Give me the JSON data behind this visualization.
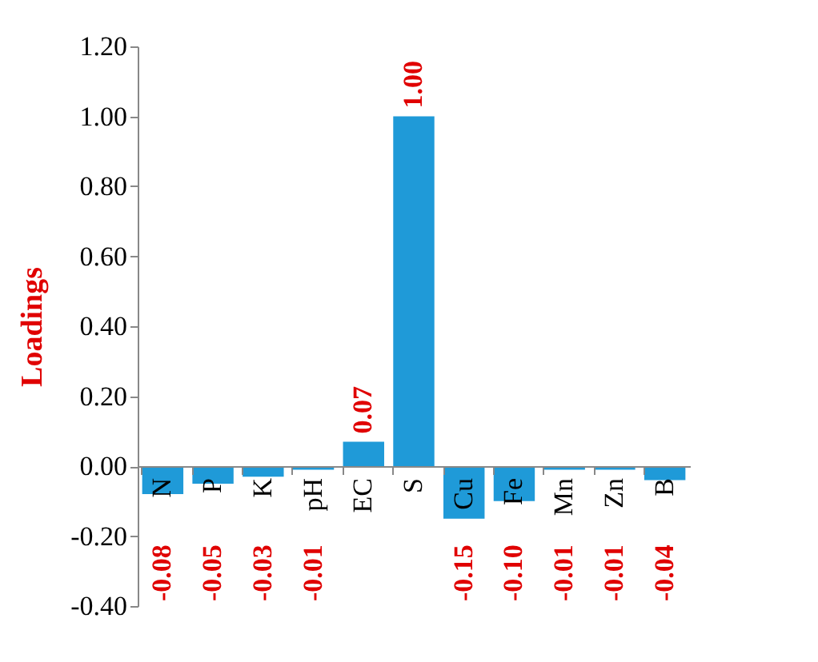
{
  "chart_data": {
    "type": "bar",
    "ylabel": "Loadings",
    "categories": [
      "N",
      "P",
      "K",
      "pH",
      "EC",
      "S",
      "Cu",
      "Fe",
      "Mn",
      "Zn",
      "B"
    ],
    "values": [
      -0.08,
      -0.05,
      -0.03,
      -0.01,
      0.07,
      1.0,
      -0.15,
      -0.1,
      -0.01,
      -0.01,
      -0.04
    ],
    "value_labels": [
      "-0.08",
      "-0.05",
      "-0.03",
      "-0.01",
      "0.07",
      "1.00",
      "-0.15",
      "-0.10",
      "-0.01",
      "-0.01",
      "-0.04"
    ],
    "color": "#1f9ad8",
    "ylim": [
      -0.4,
      1.2
    ],
    "yticks": [
      {
        "value": -0.4,
        "label": "-0.40"
      },
      {
        "value": -0.2,
        "label": "-0.20"
      },
      {
        "value": 0,
        "label": "0.00"
      },
      {
        "value": 0.2,
        "label": "0.20"
      },
      {
        "value": 0.4,
        "label": "0.40"
      },
      {
        "value": 0.6,
        "label": "0.60"
      },
      {
        "value": 0.8,
        "label": "0.80"
      },
      {
        "value": 1.0,
        "label": "1.00"
      },
      {
        "value": 1.2,
        "label": "1.20"
      }
    ],
    "grid": false
  }
}
